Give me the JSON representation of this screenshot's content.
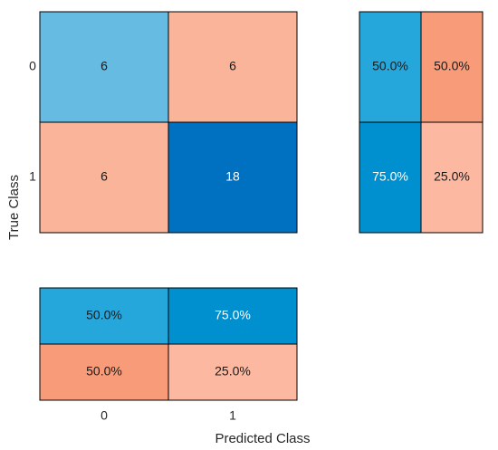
{
  "chart_data": {
    "type": "heatmap",
    "chart_kind": "confusion matrix chart with row and column summaries",
    "xlabel": "Predicted Class",
    "ylabel": "True Class",
    "classes": [
      "0",
      "1"
    ],
    "x_tick_labels": [
      "0",
      "1"
    ],
    "y_tick_labels": [
      "0",
      "1"
    ],
    "matrix": [
      [
        6,
        6
      ],
      [
        6,
        18
      ]
    ],
    "row_summary": [
      [
        "50.0%",
        "50.0%"
      ],
      [
        "75.0%",
        "25.0%"
      ]
    ],
    "column_summary": [
      [
        "50.0%",
        "75.0%"
      ],
      [
        "50.0%",
        "25.0%"
      ]
    ],
    "colors": {
      "correct_light": "#66bbe2",
      "correct_mid": "#26a7db",
      "correct_deep": "#0070c0",
      "correct_summary_strong": "#0090cf",
      "incorrect_light": "#f9b49a",
      "incorrect_mid": "#f89b78",
      "incorrect_pale": "#fcb8a0",
      "axis_text": "#262626",
      "axis_label": "#262626",
      "cell_text_dark": "#1a1a1a",
      "cell_text_light": "#ffffff",
      "border": "#000000"
    }
  }
}
